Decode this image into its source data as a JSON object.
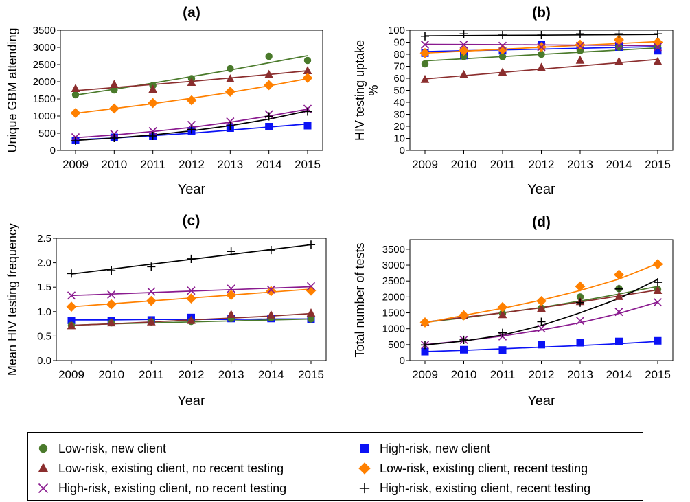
{
  "chart_data": [
    {
      "id": "a",
      "type": "line",
      "title": "(a)",
      "xlabel": "Year",
      "ylabel": "Unique GBM attending",
      "x": [
        2009,
        2010,
        2011,
        2012,
        2013,
        2014,
        2015
      ],
      "ylim": [
        0,
        3500
      ],
      "yticks": [
        0,
        500,
        1000,
        1500,
        2000,
        2500,
        3000,
        3500
      ],
      "ytick_labels": [
        "0",
        "500",
        "1000",
        "1500",
        "2000",
        "2500",
        "3000",
        "3500"
      ],
      "grid": false,
      "series": [
        {
          "key": "lr_new",
          "points": [
            1620,
            1760,
            1890,
            2090,
            2380,
            2740,
            2620
          ],
          "fit": [
            1610,
            1780,
            1960,
            2150,
            2340,
            2550,
            2760
          ]
        },
        {
          "key": "lr_exist_norecent",
          "points": [
            1800,
            1920,
            1780,
            1980,
            2080,
            2210,
            2320
          ],
          "fit": [
            1740,
            1830,
            1920,
            2010,
            2110,
            2210,
            2320
          ]
        },
        {
          "key": "lr_exist_recent",
          "points": [
            1090,
            1220,
            1380,
            1460,
            1710,
            1900,
            2110
          ],
          "fit": [
            1080,
            1220,
            1360,
            1520,
            1690,
            1880,
            2090
          ]
        },
        {
          "key": "hr_new",
          "points": [
            290,
            380,
            410,
            570,
            650,
            690,
            720
          ],
          "fit": [
            310,
            360,
            430,
            500,
            590,
            680,
            770
          ]
        },
        {
          "key": "hr_exist_norecent",
          "points": [
            380,
            480,
            560,
            740,
            840,
            1050,
            1210
          ],
          "fit": [
            370,
            450,
            550,
            670,
            820,
            1000,
            1200
          ]
        },
        {
          "key": "hr_exist_recent",
          "points": [
            280,
            360,
            420,
            610,
            720,
            990,
            1130
          ],
          "fit": [
            290,
            360,
            450,
            570,
            720,
            910,
            1150
          ]
        }
      ]
    },
    {
      "id": "b",
      "type": "line",
      "title": "(b)",
      "xlabel": "Year",
      "ylabel": "HIV testing uptake %",
      "x": [
        2009,
        2010,
        2011,
        2012,
        2013,
        2014,
        2015
      ],
      "ylim": [
        0,
        100
      ],
      "yticks": [
        0,
        10,
        20,
        30,
        40,
        50,
        60,
        70,
        80,
        90,
        100
      ],
      "ytick_labels": [
        "0",
        "10",
        "20",
        "30",
        "40",
        "50",
        "60",
        "70",
        "80",
        "90",
        "100"
      ],
      "grid": false,
      "series": [
        {
          "key": "lr_new",
          "points": [
            72,
            78,
            78,
            80,
            83,
            86,
            87
          ],
          "fit": [
            74.5,
            76.3,
            78.1,
            79.9,
            81.7,
            83.5,
            85.3
          ]
        },
        {
          "key": "lr_exist_norecent",
          "points": [
            59,
            63,
            65,
            69,
            75,
            74,
            74
          ],
          "fit": [
            59.5,
            62.2,
            64.9,
            67.6,
            70.3,
            73,
            75.7
          ]
        },
        {
          "key": "lr_exist_recent",
          "points": [
            81,
            83,
            84,
            86,
            88,
            92,
            90
          ],
          "fit": [
            81,
            82.6,
            84.2,
            85.8,
            87.4,
            89,
            90.6
          ]
        },
        {
          "key": "hr_new",
          "points": [
            81,
            79,
            83,
            88,
            87,
            86,
            83
          ],
          "fit": [
            82.2,
            82.9,
            83.6,
            84.3,
            85,
            85.7,
            86.4
          ]
        },
        {
          "key": "hr_exist_norecent",
          "points": [
            88,
            88,
            87,
            86,
            87,
            87,
            86
          ],
          "fit": [
            88.3,
            88.2,
            88,
            87.8,
            87.6,
            87.4,
            87.2
          ]
        },
        {
          "key": "hr_exist_recent",
          "points": [
            95,
            97,
            96,
            96,
            97,
            97,
            97
          ],
          "fit": [
            95.3,
            95.5,
            95.7,
            95.9,
            96.1,
            96.3,
            96.5
          ]
        }
      ]
    },
    {
      "id": "c",
      "type": "line",
      "title": "(c)",
      "xlabel": "Year",
      "ylabel": "Mean HIV testing frequency",
      "x": [
        2009,
        2010,
        2011,
        2012,
        2013,
        2014,
        2015
      ],
      "ylim": [
        0,
        2.5
      ],
      "yticks": [
        0,
        0.5,
        1,
        1.5,
        2,
        2.5
      ],
      "ytick_labels": [
        "0.0",
        "0.5",
        "1.0",
        "1.5",
        "2.0",
        "2.5"
      ],
      "grid": false,
      "series": [
        {
          "key": "lr_new",
          "points": [
            0.72,
            0.77,
            0.79,
            0.8,
            0.86,
            0.87,
            0.85
          ],
          "fit": [
            0.72,
            0.75,
            0.77,
            0.79,
            0.81,
            0.83,
            0.85
          ]
        },
        {
          "key": "lr_exist_norecent",
          "points": [
            0.71,
            0.77,
            0.79,
            0.82,
            0.94,
            0.93,
            0.97
          ],
          "fit": [
            0.72,
            0.75,
            0.79,
            0.83,
            0.87,
            0.91,
            0.96
          ]
        },
        {
          "key": "lr_exist_recent",
          "points": [
            1.1,
            1.15,
            1.22,
            1.27,
            1.34,
            1.42,
            1.43
          ],
          "fit": [
            1.1,
            1.16,
            1.22,
            1.28,
            1.34,
            1.4,
            1.46
          ]
        },
        {
          "key": "hr_new",
          "points": [
            0.82,
            0.82,
            0.83,
            0.88,
            0.86,
            0.86,
            0.84
          ],
          "fit": [
            0.83,
            0.83,
            0.84,
            0.84,
            0.84,
            0.85,
            0.85
          ]
        },
        {
          "key": "hr_exist_norecent",
          "points": [
            1.33,
            1.35,
            1.41,
            1.43,
            1.47,
            1.45,
            1.52
          ],
          "fit": [
            1.33,
            1.36,
            1.39,
            1.42,
            1.45,
            1.48,
            1.51
          ]
        },
        {
          "key": "hr_exist_recent",
          "points": [
            1.78,
            1.84,
            1.92,
            2.08,
            2.23,
            2.26,
            2.37
          ],
          "fit": [
            1.77,
            1.87,
            1.97,
            2.07,
            2.17,
            2.27,
            2.37
          ]
        }
      ]
    },
    {
      "id": "d",
      "type": "line",
      "title": "(d)",
      "xlabel": "Year",
      "ylabel": "Total number of tests",
      "x": [
        2009,
        2010,
        2011,
        2012,
        2013,
        2014,
        2015
      ],
      "ylim": [
        0,
        3800
      ],
      "yticks": [
        0,
        500,
        1000,
        1500,
        2000,
        2500,
        3000,
        3500
      ],
      "ytick_labels": [
        "0",
        "500",
        "1000",
        "1500",
        "2000",
        "2500",
        "3000",
        "3500"
      ],
      "grid": false,
      "series": [
        {
          "key": "lr_new",
          "points": [
            1200,
            1390,
            1480,
            1650,
            2000,
            2260,
            2240
          ],
          "fit": [
            1200,
            1340,
            1500,
            1670,
            1870,
            2090,
            2330
          ]
        },
        {
          "key": "lr_exist_norecent",
          "points": [
            1210,
            1420,
            1440,
            1640,
            1850,
            2010,
            2200
          ],
          "fit": [
            1210,
            1360,
            1500,
            1660,
            1840,
            2030,
            2220
          ]
        },
        {
          "key": "lr_exist_recent",
          "points": [
            1200,
            1420,
            1680,
            1870,
            2330,
            2700,
            3030
          ],
          "fit": [
            1180,
            1420,
            1640,
            1900,
            2200,
            2560,
            3050
          ]
        },
        {
          "key": "hr_new",
          "points": [
            280,
            340,
            330,
            500,
            560,
            600,
            620
          ],
          "fit": [
            280,
            320,
            370,
            420,
            470,
            530,
            600
          ]
        },
        {
          "key": "hr_exist_norecent",
          "points": [
            490,
            650,
            760,
            1010,
            1250,
            1530,
            1830
          ],
          "fit": [
            500,
            620,
            770,
            960,
            1190,
            1480,
            1840
          ]
        },
        {
          "key": "hr_exist_recent",
          "points": [
            490,
            650,
            870,
            1220,
            1820,
            2250,
            2460
          ],
          "fit": [
            490,
            610,
            800,
            1100,
            1500,
            1950,
            2550
          ]
        }
      ]
    }
  ],
  "legend": [
    {
      "key": "lr_new",
      "label": "Low-risk, new client",
      "marker": "circle",
      "color": "#4a7a2b"
    },
    {
      "key": "hr_new",
      "label": "High-risk, new client",
      "marker": "square",
      "color": "#0b12f5"
    },
    {
      "key": "lr_exist_norecent",
      "label": "Low-risk, existing client, no recent testing",
      "marker": "triangle",
      "color": "#8b2e2e"
    },
    {
      "key": "lr_exist_recent",
      "label": "Low-risk, existing client, recent testing",
      "marker": "diamond",
      "color": "#ff8000"
    },
    {
      "key": "hr_exist_norecent",
      "label": "High-risk, existing client, no recent testing",
      "marker": "x",
      "color": "#8a1a8f"
    },
    {
      "key": "hr_exist_recent",
      "label": "High-risk, existing client, recent testing",
      "marker": "plus",
      "color": "#000000"
    }
  ]
}
